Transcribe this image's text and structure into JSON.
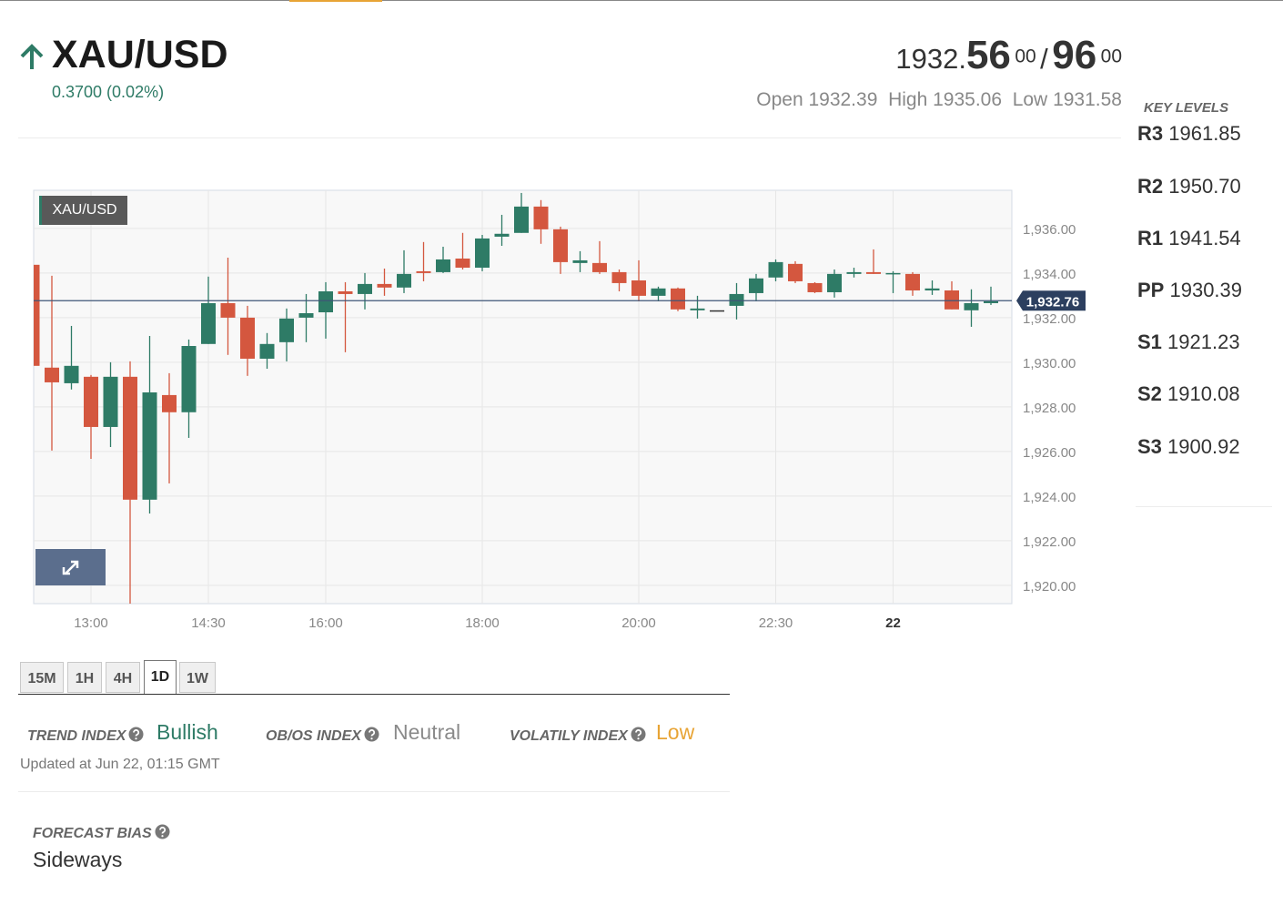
{
  "header": {
    "symbol": "XAU/USD",
    "change": "0.3700 (0.02%)",
    "bid_int": "1932.",
    "bid_big": "56",
    "bid_sup": "00",
    "sep": "/",
    "ask_big": "96",
    "ask_sup": "00",
    "open_label": "Open",
    "open": "1932.39",
    "high_label": "High",
    "high": "1935.06",
    "low_label": "Low",
    "low": "1931.58"
  },
  "key_levels": {
    "title": "KEY LEVELS",
    "levels": [
      {
        "name": "R3",
        "value": "1961.85"
      },
      {
        "name": "R2",
        "value": "1950.70"
      },
      {
        "name": "R1",
        "value": "1941.54"
      },
      {
        "name": "PP",
        "value": "1930.39"
      },
      {
        "name": "S1",
        "value": "1921.23"
      },
      {
        "name": "S2",
        "value": "1910.08"
      },
      {
        "name": "S3",
        "value": "1900.92"
      }
    ]
  },
  "chart": {
    "type": "candlestick",
    "badge": "XAU/USD",
    "categories": [
      null,
      null,
      null,
      "13:00",
      null,
      null,
      null,
      null,
      null,
      "14:30",
      null,
      null,
      null,
      null,
      null,
      "16:00",
      null,
      null,
      null,
      null,
      null,
      null,
      null,
      "18:00",
      null,
      null,
      null,
      null,
      null,
      null,
      null,
      "20:00",
      null,
      null,
      null,
      null,
      null,
      null,
      "22:30",
      null,
      null,
      null,
      null,
      null,
      "22",
      null,
      null,
      null,
      null,
      null
    ],
    "open": [
      1934.37,
      1929.76,
      1929.06,
      1929.35,
      1927.1,
      1929.35,
      1923.84,
      1928.53,
      1927.76,
      1930.82,
      1932.65,
      1932.0,
      1930.16,
      1930.9,
      1932.0,
      1932.24,
      1933.18,
      1933.06,
      1933.51,
      1933.35,
      1934.08,
      1934.04,
      1934.65,
      1934.24,
      1935.63,
      1935.8,
      1936.98,
      1935.96,
      1934.45,
      1934.45,
      1934.04,
      1933.67,
      1932.98,
      1933.31,
      1932.33,
      1932.33,
      1932.53,
      1933.1,
      1933.8,
      1934.41,
      1933.55,
      1933.14,
      1933.96,
      1934.04,
      1933.96,
      1933.96,
      1933.22,
      1933.22,
      1932.33,
      1932.65
    ],
    "high": [
      1934.37,
      1933.88,
      1931.63,
      1929.43,
      1930.0,
      1930.04,
      1931.18,
      1929.51,
      1931.02,
      1933.84,
      1934.69,
      1932.53,
      1931.31,
      1932.41,
      1933.06,
      1933.59,
      1933.59,
      1934.0,
      1934.2,
      1935.02,
      1935.39,
      1935.18,
      1935.8,
      1935.71,
      1936.61,
      1937.59,
      1937.27,
      1936.08,
      1934.98,
      1935.43,
      1934.16,
      1934.57,
      1933.39,
      1933.35,
      1932.98,
      1932.33,
      1933.55,
      1933.96,
      1934.61,
      1934.53,
      1933.59,
      1934.16,
      1934.24,
      1935.06,
      1934.08,
      1934.04,
      1933.67,
      1933.63,
      1933.27,
      1933.39
    ],
    "low": [
      1927.39,
      1926.04,
      1928.78,
      1925.67,
      1926.2,
      1919.18,
      1923.22,
      1924.57,
      1926.61,
      1930.82,
      1930.33,
      1929.39,
      1929.71,
      1930.04,
      1930.9,
      1931.06,
      1930.45,
      1932.37,
      1932.98,
      1933.1,
      1933.63,
      1934.0,
      1934.16,
      1934.08,
      1935.22,
      1935.8,
      1935.31,
      1933.96,
      1934.04,
      1933.96,
      1933.18,
      1932.73,
      1932.73,
      1932.29,
      1931.96,
      1932.33,
      1931.92,
      1932.73,
      1933.63,
      1933.55,
      1933.1,
      1932.9,
      1933.8,
      1933.96,
      1933.1,
      1932.98,
      1933.02,
      1932.37,
      1931.59,
      1932.57
    ],
    "close": [
      1929.84,
      1929.1,
      1929.84,
      1927.1,
      1929.35,
      1923.84,
      1928.65,
      1927.76,
      1930.73,
      1932.65,
      1932.0,
      1930.16,
      1930.82,
      1931.96,
      1932.2,
      1933.18,
      1933.06,
      1933.51,
      1933.35,
      1933.96,
      1934.0,
      1934.61,
      1934.24,
      1935.55,
      1935.76,
      1936.98,
      1935.96,
      1934.49,
      1934.57,
      1934.04,
      1933.55,
      1932.98,
      1933.31,
      1932.37,
      1932.41,
      1932.33,
      1933.06,
      1933.76,
      1934.49,
      1933.63,
      1933.14,
      1933.96,
      1934.04,
      1933.96,
      1934.0,
      1933.22,
      1933.31,
      1932.37,
      1932.65,
      1932.73
    ],
    "up_color": "#2e7b66",
    "down_color": "#d4573f",
    "ylim": [
      1919.18,
      1937.71
    ],
    "yticks": [
      {
        "value": 1920,
        "label": "1,920.00"
      },
      {
        "value": 1922,
        "label": "1,922.00"
      },
      {
        "value": 1924,
        "label": "1,924.00"
      },
      {
        "value": 1926,
        "label": "1,926.00"
      },
      {
        "value": 1928,
        "label": "1,928.00"
      },
      {
        "value": 1930,
        "label": "1,930.00"
      },
      {
        "value": 1932,
        "label": "1,932.00"
      },
      {
        "value": 1934,
        "label": "1,934.00"
      },
      {
        "value": 1936,
        "label": "1,936.00"
      }
    ],
    "last": {
      "value": 1932.76,
      "label": "1,932.76"
    },
    "grid": true
  },
  "timeframes": [
    "15M",
    "1H",
    "4H",
    "1D",
    "1W"
  ],
  "active_timeframe": 3,
  "indexes": [
    {
      "label": "TREND INDEX",
      "value": "Bullish",
      "color": "#2e7b66"
    },
    {
      "label": "OB/OS INDEX",
      "value": "Neutral",
      "color": "#8a8a8a"
    },
    {
      "label": "VOLATILY INDEX",
      "value": "Low",
      "color": "#e8a435"
    }
  ],
  "updated": "Updated at Jun 22, 01:15 GMT",
  "forecast": {
    "label": "FORECAST BIAS",
    "value": "Sideways"
  }
}
